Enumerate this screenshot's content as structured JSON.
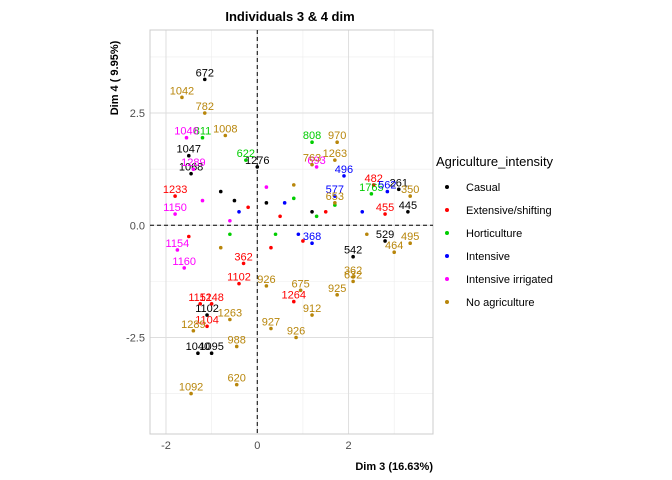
{
  "chart_data": {
    "type": "scatter",
    "title": "Individuals 3 & 4 dim",
    "xlabel": "Dim 3 (16.63%)",
    "ylabel": "Dim 4 ( 9.95%)",
    "xlim": [
      -2.35,
      3.85
    ],
    "ylim": [
      -4.65,
      4.35
    ],
    "xticks": [
      -2,
      0,
      2
    ],
    "yticks": [
      -2.5,
      0.0,
      2.5
    ],
    "ytick_labels": [
      "-2.5",
      "0.0",
      "2.5"
    ],
    "grid": true,
    "reference_lines": {
      "x": 0,
      "y": 0
    },
    "legend": {
      "title": "Agriculture_intensity",
      "placement": "right",
      "entries": [
        "Casual",
        "Extensive/shifting",
        "Horticulture",
        "Intensive",
        "Intensive irrigated",
        "No agriculture"
      ]
    },
    "colors": {
      "Casual": "#000000",
      "Extensive/shifting": "#ff0000",
      "Horticulture": "#00cd00",
      "Intensive": "#0000ff",
      "Intensive irrigated": "#ff00ff",
      "No agriculture": "#b8860b"
    },
    "series": [
      {
        "name": "Casual",
        "points": [
          {
            "x": -1.15,
            "y": 3.25,
            "label": "672"
          },
          {
            "x": 0.0,
            "y": 1.3,
            "label": "1276"
          },
          {
            "x": -1.5,
            "y": 1.55,
            "label": "1047"
          },
          {
            "x": -1.45,
            "y": 1.15,
            "label": "1068"
          },
          {
            "x": 3.1,
            "y": 0.8,
            "label": "261"
          },
          {
            "x": 3.3,
            "y": 0.3,
            "label": "445"
          },
          {
            "x": 2.8,
            "y": -0.35,
            "label": "529"
          },
          {
            "x": 2.1,
            "y": -0.7,
            "label": "542"
          },
          {
            "x": -1.1,
            "y": -2.0,
            "label": "1102"
          },
          {
            "x": -1.0,
            "y": -2.85,
            "label": "1095"
          },
          {
            "x": -1.3,
            "y": -2.85,
            "label": "1040"
          },
          {
            "x": -0.5,
            "y": 0.55,
            "label": ""
          },
          {
            "x": -0.8,
            "y": 0.75,
            "label": ""
          },
          {
            "x": 0.2,
            "y": 0.5,
            "label": ""
          },
          {
            "x": 1.2,
            "y": 0.3,
            "label": ""
          }
        ]
      },
      {
        "name": "Extensive/shifting",
        "points": [
          {
            "x": 2.55,
            "y": 0.9,
            "label": "482"
          },
          {
            "x": 2.8,
            "y": 0.25,
            "label": "455"
          },
          {
            "x": -1.25,
            "y": -1.75,
            "label": "1151"
          },
          {
            "x": -1.1,
            "y": -2.25,
            "label": "1104"
          },
          {
            "x": -1.0,
            "y": -1.75,
            "label": "1248"
          },
          {
            "x": 0.8,
            "y": -1.7,
            "label": "1264"
          },
          {
            "x": -0.3,
            "y": -0.85,
            "label": "362"
          },
          {
            "x": -1.8,
            "y": 0.65,
            "label": "1233"
          },
          {
            "x": -0.4,
            "y": -1.3,
            "label": "1102"
          },
          {
            "x": 0.5,
            "y": 0.2,
            "label": ""
          },
          {
            "x": 1.5,
            "y": 0.3,
            "label": ""
          },
          {
            "x": -0.2,
            "y": 0.4,
            "label": ""
          },
          {
            "x": 0.3,
            "y": -0.5,
            "label": ""
          },
          {
            "x": -1.5,
            "y": -0.25,
            "label": ""
          },
          {
            "x": 1.0,
            "y": -0.35,
            "label": ""
          }
        ]
      },
      {
        "name": "Horticulture",
        "points": [
          {
            "x": -1.2,
            "y": 1.95,
            "label": "811"
          },
          {
            "x": 1.2,
            "y": 1.85,
            "label": "808"
          },
          {
            "x": -0.25,
            "y": 1.45,
            "label": "622"
          },
          {
            "x": 2.5,
            "y": 0.7,
            "label": "1765"
          },
          {
            "x": 0.8,
            "y": 0.6,
            "label": ""
          },
          {
            "x": 1.7,
            "y": 0.45,
            "label": ""
          },
          {
            "x": 0.4,
            "y": -0.2,
            "label": ""
          },
          {
            "x": -0.6,
            "y": -0.2,
            "label": ""
          },
          {
            "x": 1.3,
            "y": 0.2,
            "label": ""
          }
        ]
      },
      {
        "name": "Intensive",
        "points": [
          {
            "x": 1.9,
            "y": 1.1,
            "label": "496"
          },
          {
            "x": 2.85,
            "y": 0.75,
            "label": "562"
          },
          {
            "x": 1.7,
            "y": 0.65,
            "label": "577"
          },
          {
            "x": 1.2,
            "y": -0.4,
            "label": "368"
          },
          {
            "x": 0.6,
            "y": 0.5,
            "label": ""
          },
          {
            "x": 2.3,
            "y": 0.3,
            "label": ""
          },
          {
            "x": -0.4,
            "y": 0.3,
            "label": ""
          },
          {
            "x": 0.9,
            "y": -0.2,
            "label": ""
          }
        ]
      },
      {
        "name": "Intensive irrigated",
        "points": [
          {
            "x": -1.55,
            "y": 1.95,
            "label": "1046"
          },
          {
            "x": -1.4,
            "y": 1.25,
            "label": "1289"
          },
          {
            "x": -1.8,
            "y": 0.25,
            "label": "1150"
          },
          {
            "x": -1.75,
            "y": -0.55,
            "label": "1154"
          },
          {
            "x": -1.6,
            "y": -0.95,
            "label": "1160"
          },
          {
            "x": 1.3,
            "y": 1.3,
            "label": "693"
          },
          {
            "x": -0.6,
            "y": 0.1,
            "label": ""
          },
          {
            "x": 0.2,
            "y": 0.85,
            "label": ""
          },
          {
            "x": -1.2,
            "y": 0.55,
            "label": ""
          }
        ]
      },
      {
        "name": "No agriculture",
        "points": [
          {
            "x": -1.65,
            "y": 2.85,
            "label": "1042"
          },
          {
            "x": -1.15,
            "y": 2.5,
            "label": "782"
          },
          {
            "x": -0.7,
            "y": 2.0,
            "label": "1008"
          },
          {
            "x": 1.75,
            "y": 1.85,
            "label": "970"
          },
          {
            "x": 1.7,
            "y": 1.45,
            "label": "1263"
          },
          {
            "x": 1.2,
            "y": 1.35,
            "label": "763"
          },
          {
            "x": 3.35,
            "y": 0.65,
            "label": "350"
          },
          {
            "x": 3.35,
            "y": -0.4,
            "label": "495"
          },
          {
            "x": 3.0,
            "y": -0.6,
            "label": "464"
          },
          {
            "x": 2.1,
            "y": -1.15,
            "label": "362"
          },
          {
            "x": 0.95,
            "y": -1.45,
            "label": "675"
          },
          {
            "x": 1.75,
            "y": -1.55,
            "label": "925"
          },
          {
            "x": 1.2,
            "y": -2.0,
            "label": "912"
          },
          {
            "x": 0.2,
            "y": -1.35,
            "label": "926"
          },
          {
            "x": 0.3,
            "y": -2.3,
            "label": "927"
          },
          {
            "x": 0.85,
            "y": -2.5,
            "label": "926"
          },
          {
            "x": -0.6,
            "y": -2.1,
            "label": "1263"
          },
          {
            "x": -0.45,
            "y": -2.7,
            "label": "988"
          },
          {
            "x": -1.45,
            "y": -3.75,
            "label": "1092"
          },
          {
            "x": -0.45,
            "y": -3.55,
            "label": "620"
          },
          {
            "x": -1.4,
            "y": -2.35,
            "label": "1289"
          },
          {
            "x": 2.1,
            "y": -1.25,
            "label": "632"
          },
          {
            "x": 1.7,
            "y": 0.5,
            "label": "653"
          },
          {
            "x": 0.8,
            "y": 0.9,
            "label": ""
          },
          {
            "x": 2.4,
            "y": -0.2,
            "label": ""
          },
          {
            "x": -0.8,
            "y": -0.5,
            "label": ""
          }
        ]
      }
    ]
  }
}
